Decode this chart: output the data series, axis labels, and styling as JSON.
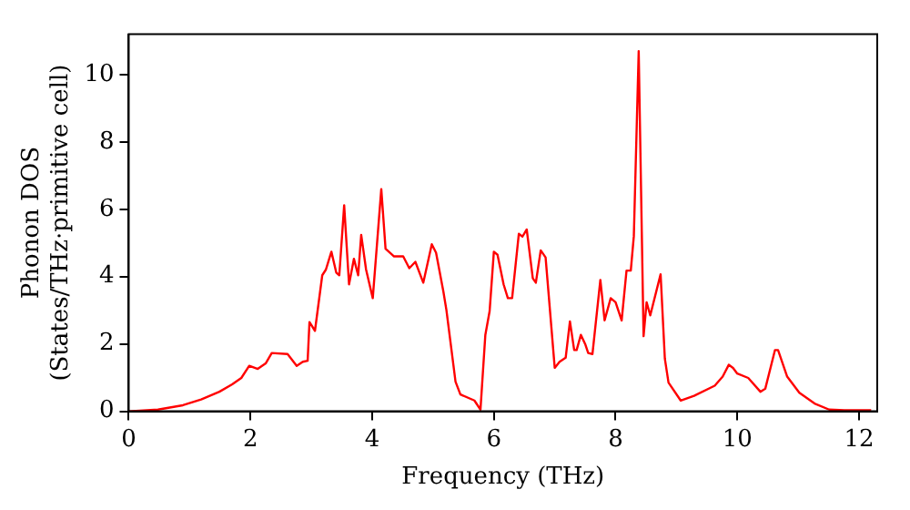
{
  "chart_data": {
    "type": "line",
    "xlabel": "Frequency (THz)",
    "ylabel": "Phonon DOS\n(States/THz·primitive cell)",
    "xlim": [
      0,
      12.3
    ],
    "ylim": [
      0,
      11.2
    ],
    "xticks": [
      0,
      2,
      4,
      6,
      8,
      10,
      12
    ],
    "yticks": [
      0,
      2,
      4,
      6,
      8,
      10
    ],
    "grid": false,
    "legend": false,
    "marker": "none",
    "line_style": "solid",
    "series": [
      {
        "color": "#ff0000",
        "x": [
          0,
          0.48,
          0.89,
          1.19,
          1.49,
          1.7,
          1.85,
          1.98,
          2.12,
          2.25,
          2.35,
          2.61,
          2.76,
          2.86,
          2.94,
          2.97,
          3.06,
          3.18,
          3.24,
          3.33,
          3.41,
          3.46,
          3.54,
          3.62,
          3.7,
          3.77,
          3.82,
          3.9,
          4.01,
          4.15,
          4.22,
          4.36,
          4.51,
          4.61,
          4.71,
          4.84,
          4.98,
          5.05,
          5.17,
          5.22,
          5.37,
          5.45,
          5.68,
          5.78,
          5.86,
          5.93,
          6.0,
          6.06,
          6.16,
          6.23,
          6.3,
          6.41,
          6.47,
          6.54,
          6.64,
          6.69,
          6.77,
          6.85,
          7.0,
          7.08,
          7.18,
          7.25,
          7.32,
          7.36,
          7.43,
          7.5,
          7.55,
          7.62,
          7.75,
          7.82,
          7.92,
          8.0,
          8.1,
          8.18,
          8.25,
          8.3,
          8.38,
          8.46,
          8.51,
          8.57,
          8.74,
          8.81,
          8.87,
          9.07,
          9.29,
          9.63,
          9.76,
          9.86,
          9.93,
          10.0,
          10.18,
          10.38,
          10.46,
          10.62,
          10.67,
          10.82,
          11.02,
          11.27,
          11.51,
          11.76,
          12.2
        ],
        "values": [
          0,
          0.05,
          0.18,
          0.35,
          0.58,
          0.8,
          0.99,
          1.35,
          1.26,
          1.42,
          1.73,
          1.7,
          1.35,
          1.47,
          1.5,
          2.65,
          2.39,
          4.04,
          4.21,
          4.74,
          4.12,
          4.04,
          6.12,
          3.77,
          4.53,
          4.04,
          5.24,
          4.21,
          3.36,
          6.6,
          4.83,
          4.6,
          4.6,
          4.25,
          4.44,
          3.82,
          4.96,
          4.71,
          3.56,
          3.01,
          0.88,
          0.5,
          0.32,
          0.05,
          2.27,
          2.97,
          4.74,
          4.65,
          3.77,
          3.36,
          3.36,
          5.27,
          5.19,
          5.4,
          3.95,
          3.82,
          4.78,
          4.57,
          1.29,
          1.47,
          1.59,
          2.67,
          1.82,
          1.82,
          2.27,
          2.0,
          1.73,
          1.7,
          3.9,
          2.7,
          3.36,
          3.24,
          2.7,
          4.18,
          4.18,
          5.2,
          10.7,
          2.23,
          3.24,
          2.85,
          4.07,
          1.56,
          0.85,
          0.32,
          0.46,
          0.76,
          1.03,
          1.38,
          1.29,
          1.12,
          0.99,
          0.58,
          0.67,
          1.82,
          1.82,
          1.03,
          0.55,
          0.23,
          0.05,
          0.03,
          0.03
        ]
      }
    ]
  }
}
